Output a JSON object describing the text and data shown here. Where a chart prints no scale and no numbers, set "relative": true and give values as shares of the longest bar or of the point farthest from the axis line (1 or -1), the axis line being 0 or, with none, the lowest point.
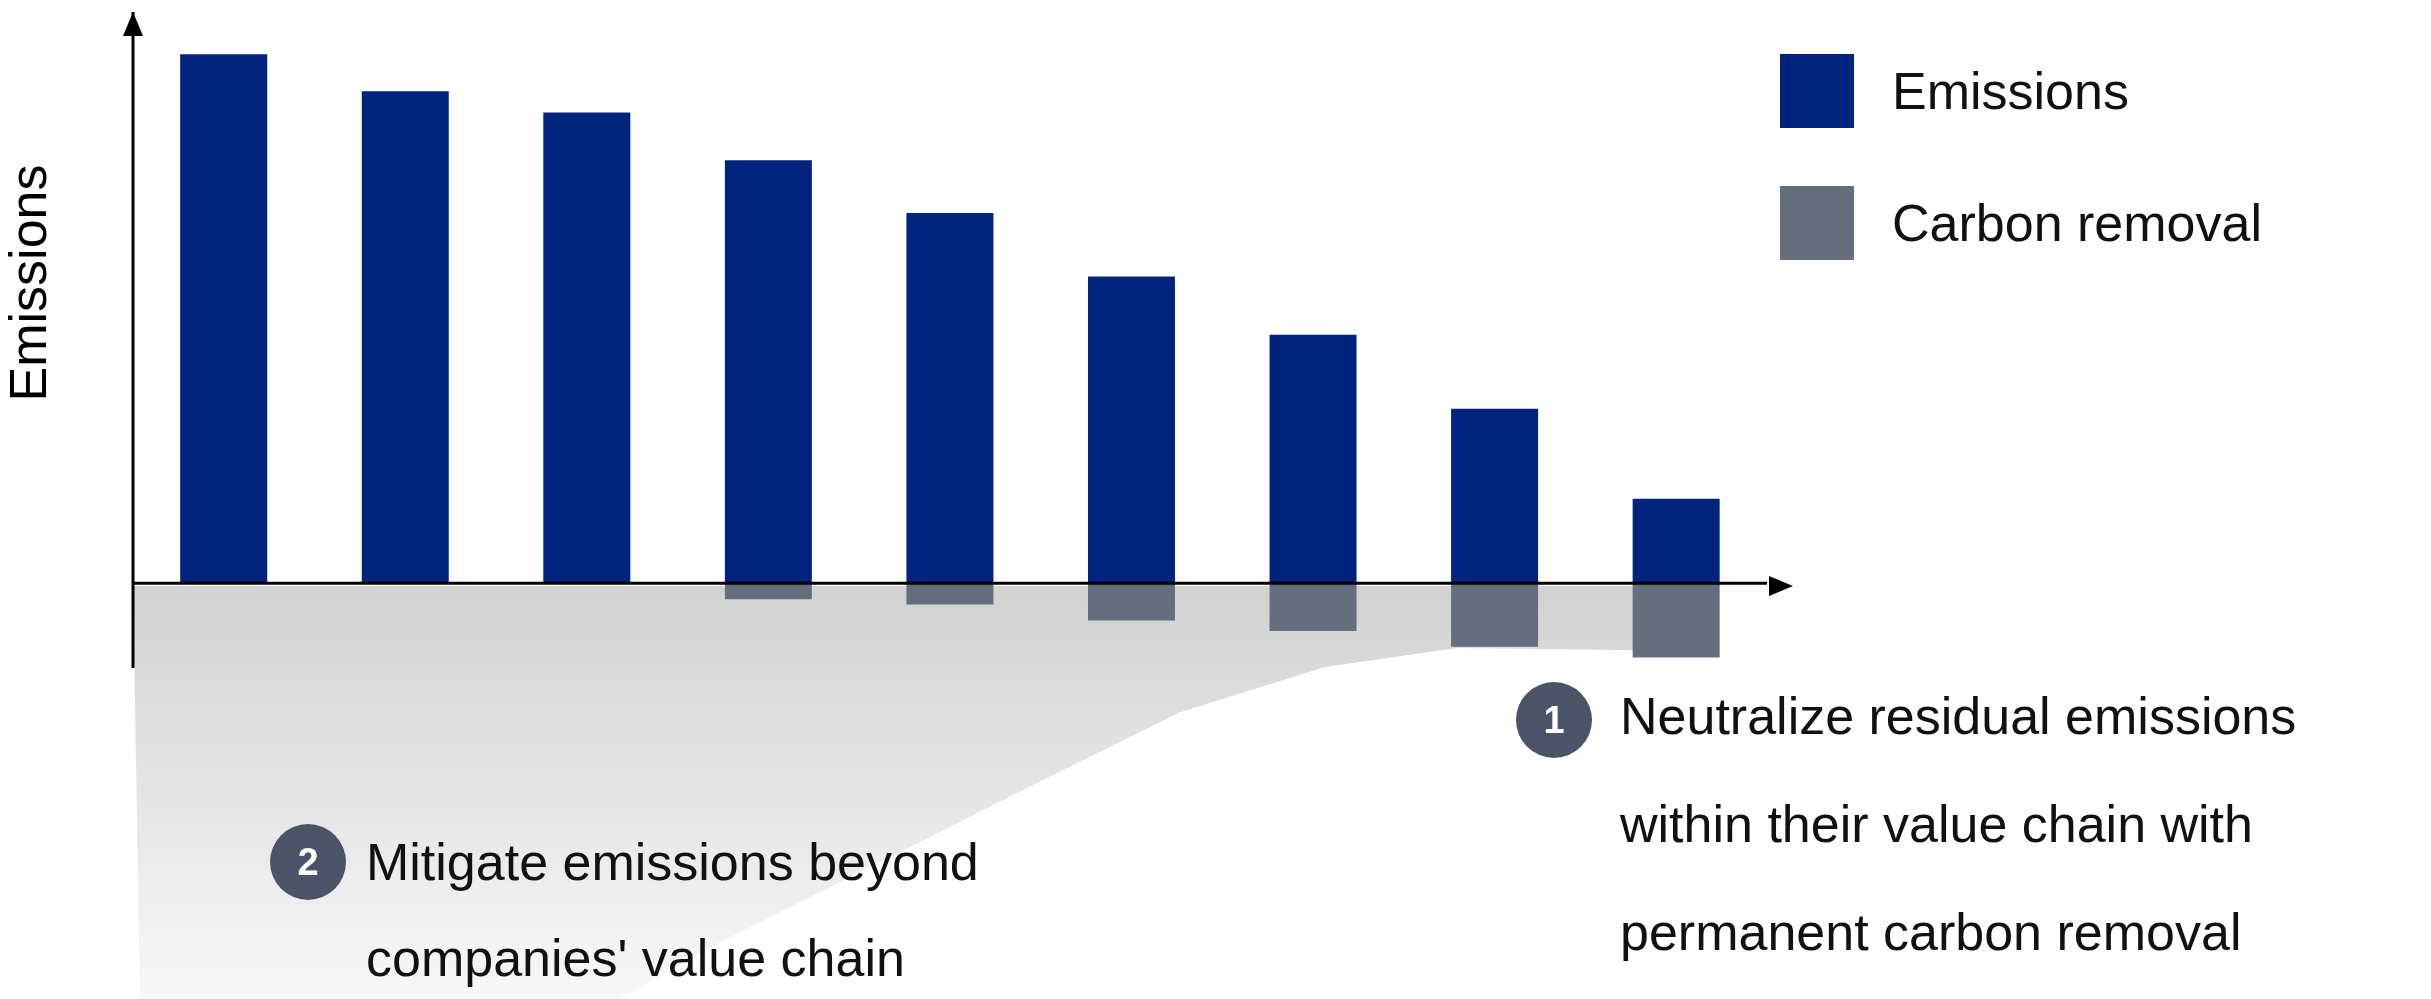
{
  "chart_data": {
    "type": "bar",
    "relative": true,
    "stacked": true,
    "ylabel": "Emissions",
    "categories": [
      null,
      null,
      null,
      null,
      null,
      null,
      null,
      null,
      null
    ],
    "series": [
      {
        "name": "Emissions",
        "color": "#00247d",
        "values": [
          1,
          0.93,
          0.89,
          0.8,
          0.7,
          0.58,
          0.47,
          0.33,
          0.16
        ]
      },
      {
        "name": "Carbon removal",
        "color": "#646e7c",
        "values": [
          null,
          null,
          null,
          -0.03,
          -0.04,
          -0.07,
          -0.09,
          -0.12,
          -0.14
        ]
      }
    ],
    "legend": "top right",
    "annotations": [
      "1",
      "Neutralize residual emissions within their value chain with permanent carbon removal",
      "2",
      "Mitigate emissions beyond companies' value chain"
    ]
  }
}
